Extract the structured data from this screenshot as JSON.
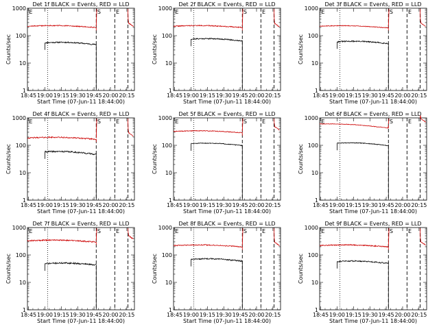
{
  "figure": {
    "ylabel": "Counts/sec",
    "xlabel": "Start Time (07-Jun-11 18:44:00)",
    "y_ticks": [
      "1",
      "10",
      "100",
      "1000"
    ],
    "x_ticks": [
      "18:45",
      "19:00",
      "19:15",
      "19:30",
      "19:45",
      "20:00",
      "20:15"
    ],
    "marker_labels": [
      "E",
      "S",
      "E"
    ]
  },
  "chart_data": [
    {
      "type": "line",
      "title": "Det 1f BLACK = Events, RED = LLD",
      "x_unit": "minutes since 18:44",
      "x_range": [
        0,
        98
      ],
      "ylim": [
        1,
        1000
      ],
      "y_scale": "log",
      "x_ticks": [
        "18:45",
        "19:00",
        "19:15",
        "19:30",
        "19:45",
        "20:00",
        "20:15"
      ],
      "dotted_x": 18.5,
      "dashed_x": [
        63,
        80,
        92
      ],
      "marker_labels": [
        {
          "text": "E",
          "x": 1.5
        },
        {
          "text": "S",
          "x": 64
        },
        {
          "text": "E",
          "x": 81
        }
      ],
      "series": [
        {
          "color": "#000000",
          "start": 16,
          "end": 63,
          "level": 55,
          "drift": 0.9,
          "noise": 0.05,
          "seed": 11
        },
        {
          "color": "#cc0000",
          "start": 0,
          "end": 63,
          "level": 220,
          "drift": 0.95,
          "noise": 0.04,
          "seed": 12,
          "post_start": 92,
          "post_level": 200,
          "spike": true
        }
      ],
      "colors": {
        "events": "#000000",
        "lld": "#cc0000"
      }
    },
    {
      "type": "line",
      "title": "Det 2f BLACK = Events, RED = LLD",
      "x_unit": "minutes since 18:44",
      "x_range": [
        0,
        98
      ],
      "ylim": [
        1,
        1000
      ],
      "y_scale": "log",
      "x_ticks": [
        "18:45",
        "19:00",
        "19:15",
        "19:30",
        "19:45",
        "20:00",
        "20:15"
      ],
      "dotted_x": 18.5,
      "dashed_x": [
        63,
        80,
        92
      ],
      "marker_labels": [
        {
          "text": "E",
          "x": 1.5
        },
        {
          "text": "S",
          "x": 64
        },
        {
          "text": "E",
          "x": 81
        }
      ],
      "series": [
        {
          "color": "#000000",
          "start": 16,
          "end": 63,
          "level": 75,
          "drift": 0.9,
          "noise": 0.05,
          "seed": 21
        },
        {
          "color": "#cc0000",
          "start": 0,
          "end": 63,
          "level": 220,
          "drift": 0.95,
          "noise": 0.04,
          "seed": 22,
          "post_start": 92,
          "post_level": 190,
          "spike": true
        }
      ],
      "colors": {
        "events": "#000000",
        "lld": "#cc0000"
      }
    },
    {
      "type": "line",
      "title": "Det 3f BLACK = Events, RED = LLD",
      "x_unit": "minutes since 18:44",
      "x_range": [
        0,
        98
      ],
      "ylim": [
        1,
        1000
      ],
      "y_scale": "log",
      "x_ticks": [
        "18:45",
        "19:00",
        "19:15",
        "19:30",
        "19:45",
        "20:00",
        "20:15"
      ],
      "dotted_x": 18.5,
      "dashed_x": [
        63,
        80,
        92
      ],
      "marker_labels": [
        {
          "text": "E",
          "x": 1.5
        },
        {
          "text": "S",
          "x": 64
        },
        {
          "text": "E",
          "x": 81
        }
      ],
      "series": [
        {
          "color": "#000000",
          "start": 16,
          "end": 63,
          "level": 60,
          "drift": 0.9,
          "noise": 0.05,
          "seed": 31
        },
        {
          "color": "#cc0000",
          "start": 0,
          "end": 63,
          "level": 220,
          "drift": 0.92,
          "noise": 0.03,
          "seed": 32,
          "post_start": 92,
          "post_level": 200,
          "spike": true
        }
      ],
      "colors": {
        "events": "#000000",
        "lld": "#cc0000"
      }
    },
    {
      "type": "line",
      "title": "Det 4f BLACK = Events, RED = LLD",
      "x_unit": "minutes since 18:44",
      "x_range": [
        0,
        98
      ],
      "ylim": [
        1,
        1000
      ],
      "y_scale": "log",
      "x_ticks": [
        "18:45",
        "19:00",
        "19:15",
        "19:30",
        "19:45",
        "20:00",
        "20:15"
      ],
      "dotted_x": 18.5,
      "dashed_x": [
        63,
        80,
        92
      ],
      "marker_labels": [
        {
          "text": "E",
          "x": 1.5
        },
        {
          "text": "S",
          "x": 64
        },
        {
          "text": "E",
          "x": 81
        }
      ],
      "series": [
        {
          "color": "#000000",
          "start": 16,
          "end": 63,
          "level": 58,
          "drift": 0.85,
          "noise": 0.06,
          "seed": 41
        },
        {
          "color": "#cc0000",
          "start": 0,
          "end": 63,
          "level": 185,
          "drift": 0.95,
          "noise": 0.05,
          "seed": 42,
          "post_start": 92,
          "post_level": 200,
          "spike": true
        }
      ],
      "colors": {
        "events": "#000000",
        "lld": "#cc0000"
      }
    },
    {
      "type": "line",
      "title": "Det 5f BLACK = Events, RED = LLD",
      "x_unit": "minutes since 18:44",
      "x_range": [
        0,
        98
      ],
      "ylim": [
        1,
        1000
      ],
      "y_scale": "log",
      "x_ticks": [
        "18:45",
        "19:00",
        "19:15",
        "19:30",
        "19:45",
        "20:00",
        "20:15"
      ],
      "dotted_x": 18.5,
      "dashed_x": [
        63,
        80,
        92
      ],
      "marker_labels": [
        {
          "text": "E",
          "x": 1.5
        },
        {
          "text": "S",
          "x": 64
        },
        {
          "text": "E",
          "x": 81
        }
      ],
      "series": [
        {
          "color": "#000000",
          "start": 16,
          "end": 63,
          "level": 115,
          "drift": 0.9,
          "noise": 0.03,
          "seed": 51
        },
        {
          "color": "#cc0000",
          "start": 0,
          "end": 63,
          "level": 320,
          "drift": 0.95,
          "noise": 0.03,
          "seed": 52,
          "post_start": 92,
          "post_level": 330,
          "spike": true
        }
      ],
      "colors": {
        "events": "#000000",
        "lld": "#cc0000"
      }
    },
    {
      "type": "line",
      "title": "Det 6f BLACK = Events, RED = LLD",
      "x_unit": "minutes since 18:44",
      "x_range": [
        0,
        98
      ],
      "ylim": [
        1,
        1000
      ],
      "y_scale": "log",
      "x_ticks": [
        "18:45",
        "19:00",
        "19:15",
        "19:30",
        "19:45",
        "20:00",
        "20:15"
      ],
      "dotted_x": 18.5,
      "dashed_x": [
        63,
        80,
        92
      ],
      "marker_labels": [
        {
          "text": "E",
          "x": 1.5
        },
        {
          "text": "S",
          "x": 64
        },
        {
          "text": "E",
          "x": 81
        }
      ],
      "series": [
        {
          "color": "#000000",
          "start": 16,
          "end": 63,
          "level": 120,
          "drift": 0.85,
          "noise": 0.03,
          "seed": 61
        },
        {
          "color": "#cc0000",
          "start": 0,
          "end": 63,
          "level": 600,
          "drift": 0.75,
          "noise": 0.02,
          "seed": 62,
          "post_start": 92,
          "post_level": 650,
          "spike": true
        }
      ],
      "colors": {
        "events": "#000000",
        "lld": "#cc0000"
      }
    },
    {
      "type": "line",
      "title": "Det 7f BLACK = Events, RED = LLD",
      "x_unit": "minutes since 18:44",
      "x_range": [
        0,
        98
      ],
      "ylim": [
        1,
        1000
      ],
      "y_scale": "log",
      "x_ticks": [
        "18:45",
        "19:00",
        "19:15",
        "19:30",
        "19:45",
        "20:00",
        "20:15"
      ],
      "dotted_x": 18.5,
      "dashed_x": [
        63,
        80,
        92
      ],
      "marker_labels": [
        {
          "text": "E",
          "x": 1.5
        },
        {
          "text": "S",
          "x": 64
        },
        {
          "text": "E",
          "x": 81
        }
      ],
      "series": [
        {
          "color": "#000000",
          "start": 16,
          "end": 63,
          "level": 48,
          "drift": 0.95,
          "noise": 0.06,
          "seed": 71
        },
        {
          "color": "#cc0000",
          "start": 0,
          "end": 63,
          "level": 330,
          "drift": 0.95,
          "noise": 0.05,
          "seed": 72,
          "post_start": 92,
          "post_level": 350,
          "spike": true
        }
      ],
      "colors": {
        "events": "#000000",
        "lld": "#cc0000"
      }
    },
    {
      "type": "line",
      "title": "Det 8f BLACK = Events, RED = LLD",
      "x_unit": "minutes since 18:44",
      "x_range": [
        0,
        98
      ],
      "ylim": [
        1,
        1000
      ],
      "y_scale": "log",
      "x_ticks": [
        "18:45",
        "19:00",
        "19:15",
        "19:30",
        "19:45",
        "20:00",
        "20:15"
      ],
      "dotted_x": 18.5,
      "dashed_x": [
        63,
        80,
        92
      ],
      "marker_labels": [
        {
          "text": "E",
          "x": 1.5
        },
        {
          "text": "S",
          "x": 64
        },
        {
          "text": "E",
          "x": 81
        }
      ],
      "series": [
        {
          "color": "#000000",
          "start": 16,
          "end": 63,
          "level": 70,
          "drift": 0.9,
          "noise": 0.05,
          "seed": 81
        },
        {
          "color": "#cc0000",
          "start": 0,
          "end": 63,
          "level": 220,
          "drift": 0.95,
          "noise": 0.04,
          "seed": 82,
          "post_start": 92,
          "post_level": 200,
          "spike": true
        }
      ],
      "colors": {
        "events": "#000000",
        "lld": "#cc0000"
      }
    },
    {
      "type": "line",
      "title": "Det 9f BLACK = Events, RED = LLD",
      "x_unit": "minutes since 18:44",
      "x_range": [
        0,
        98
      ],
      "ylim": [
        1,
        1000
      ],
      "y_scale": "log",
      "x_ticks": [
        "18:45",
        "19:00",
        "19:15",
        "19:30",
        "19:45",
        "20:00",
        "20:15"
      ],
      "dotted_x": 18.5,
      "dashed_x": [
        63,
        80,
        92
      ],
      "marker_labels": [
        {
          "text": "E",
          "x": 1.5
        },
        {
          "text": "S",
          "x": 64
        },
        {
          "text": "E",
          "x": 81
        }
      ],
      "series": [
        {
          "color": "#000000",
          "start": 16,
          "end": 63,
          "level": 58,
          "drift": 0.9,
          "noise": 0.05,
          "seed": 91
        },
        {
          "color": "#cc0000",
          "start": 0,
          "end": 63,
          "level": 220,
          "drift": 0.95,
          "noise": 0.04,
          "seed": 92,
          "post_start": 92,
          "post_level": 210,
          "spike": true
        }
      ],
      "colors": {
        "events": "#000000",
        "lld": "#cc0000"
      }
    }
  ]
}
